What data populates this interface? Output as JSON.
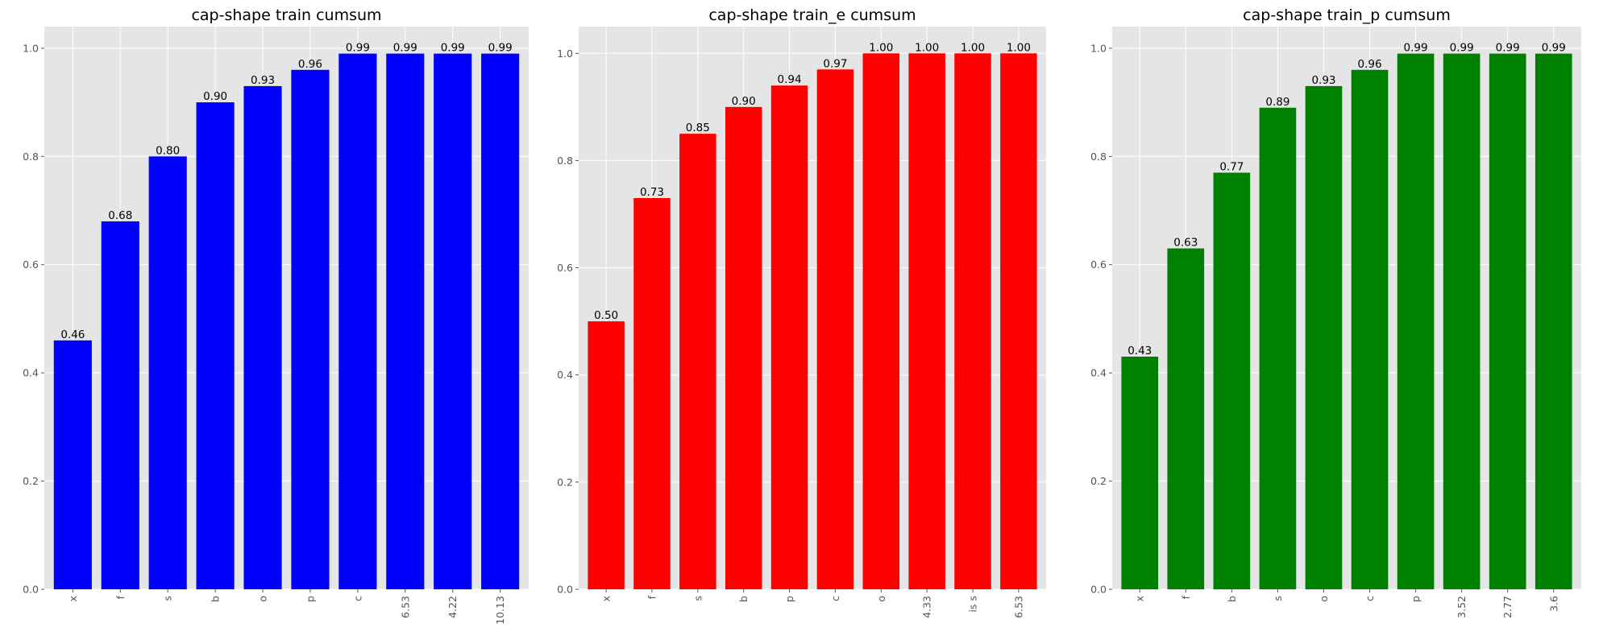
{
  "chart_data": [
    {
      "type": "bar",
      "title": "cap-shape train cumsum",
      "categories": [
        "x",
        "f",
        "s",
        "b",
        "o",
        "p",
        "c",
        "6.53",
        "4.22",
        "10.13"
      ],
      "values": [
        0.46,
        0.68,
        0.8,
        0.9,
        0.93,
        0.96,
        0.99,
        0.99,
        0.99,
        0.99
      ],
      "data_labels": [
        "0.46",
        "0.68",
        "0.80",
        "0.90",
        "0.93",
        "0.96",
        "0.99",
        "0.99",
        "0.99",
        "0.99"
      ],
      "bar_color": "#0000ff",
      "ylim": [
        0,
        1.04
      ],
      "yticks": [
        0.0,
        0.2,
        0.4,
        0.6,
        0.8,
        1.0
      ],
      "ytick_labels": [
        "0.0",
        "0.2",
        "0.4",
        "0.6",
        "0.8",
        "1.0"
      ],
      "grid": true
    },
    {
      "type": "bar",
      "title": "cap-shape train_e cumsum",
      "categories": [
        "x",
        "f",
        "s",
        "b",
        "p",
        "c",
        "o",
        "4.33",
        "is s",
        "6.53"
      ],
      "values": [
        0.5,
        0.73,
        0.85,
        0.9,
        0.94,
        0.97,
        1.0,
        1.0,
        1.0,
        1.0
      ],
      "data_labels": [
        "0.50",
        "0.73",
        "0.85",
        "0.90",
        "0.94",
        "0.97",
        "1.00",
        "1.00",
        "1.00",
        "1.00"
      ],
      "bar_color": "#ff0000",
      "ylim": [
        0,
        1.05
      ],
      "yticks": [
        0.0,
        0.2,
        0.4,
        0.6,
        0.8,
        1.0
      ],
      "ytick_labels": [
        "0.0",
        "0.2",
        "0.4",
        "0.6",
        "0.8",
        "1.0"
      ],
      "grid": true
    },
    {
      "type": "bar",
      "title": "cap-shape train_p cumsum",
      "categories": [
        "x",
        "f",
        "b",
        "s",
        "o",
        "c",
        "p",
        "3.52",
        "2.77",
        "3.6"
      ],
      "values": [
        0.43,
        0.63,
        0.77,
        0.89,
        0.93,
        0.96,
        0.99,
        0.99,
        0.99,
        0.99
      ],
      "data_labels": [
        "0.43",
        "0.63",
        "0.77",
        "0.89",
        "0.93",
        "0.96",
        "0.99",
        "0.99",
        "0.99",
        "0.99"
      ],
      "bar_color": "#008000",
      "ylim": [
        0,
        1.04
      ],
      "yticks": [
        0.0,
        0.2,
        0.4,
        0.6,
        0.8,
        1.0
      ],
      "ytick_labels": [
        "0.0",
        "0.2",
        "0.4",
        "0.6",
        "0.8",
        "1.0"
      ],
      "grid": true
    }
  ]
}
